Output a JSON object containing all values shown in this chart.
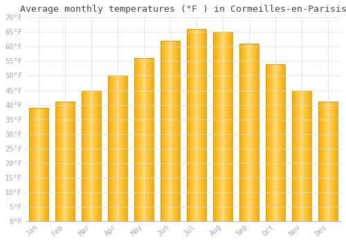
{
  "title": "Average monthly temperatures (°F ) in Cormeilles-en-Parisis",
  "months": [
    "Jan",
    "Feb",
    "Mar",
    "Apr",
    "May",
    "Jun",
    "Jul",
    "Aug",
    "Sep",
    "Oct",
    "Nov",
    "Dec"
  ],
  "values": [
    39,
    41,
    45,
    50,
    56,
    62,
    66,
    65,
    61,
    54,
    45,
    41
  ],
  "bar_color_left": "#F5A800",
  "bar_color_mid": "#FFD966",
  "bar_color_right": "#F5A800",
  "background_color": "#FFFFFF",
  "grid_color": "#DDDDDD",
  "ylim": [
    0,
    70
  ],
  "yticks": [
    0,
    5,
    10,
    15,
    20,
    25,
    30,
    35,
    40,
    45,
    50,
    55,
    60,
    65,
    70
  ],
  "tick_label_color": "#AAAAAA",
  "title_fontsize": 9.5,
  "tick_fontsize": 7.5,
  "font_family": "monospace",
  "bar_width": 0.75
}
